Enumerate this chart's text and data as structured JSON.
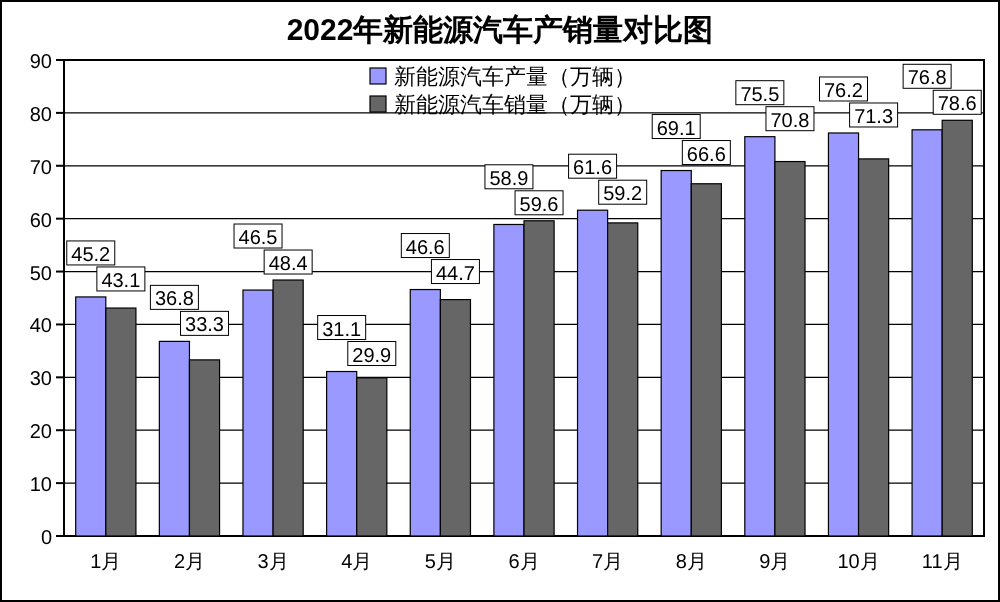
{
  "chart_data": {
    "type": "bar",
    "title": "2022年新能源汽车产销量对比图",
    "categories": [
      "1月",
      "2月",
      "3月",
      "4月",
      "5月",
      "6月",
      "7月",
      "8月",
      "9月",
      "10月",
      "11月"
    ],
    "series": [
      {
        "name": "新能源汽车产量（万辆）",
        "color": "#9999ff",
        "values": [
          45.2,
          36.8,
          46.5,
          31.1,
          46.6,
          58.9,
          61.6,
          69.1,
          75.5,
          76.2,
          76.8
        ]
      },
      {
        "name": "新能源汽车销量（万辆）",
        "color": "#666666",
        "values": [
          43.1,
          33.3,
          48.4,
          29.9,
          44.7,
          59.6,
          59.2,
          66.6,
          70.8,
          71.3,
          78.6
        ]
      }
    ],
    "ylim": [
      0,
      90
    ],
    "yticks": [
      0,
      10,
      20,
      30,
      40,
      50,
      60,
      70,
      80,
      90
    ],
    "grid": "y",
    "legend": "top",
    "data_labels": true
  }
}
